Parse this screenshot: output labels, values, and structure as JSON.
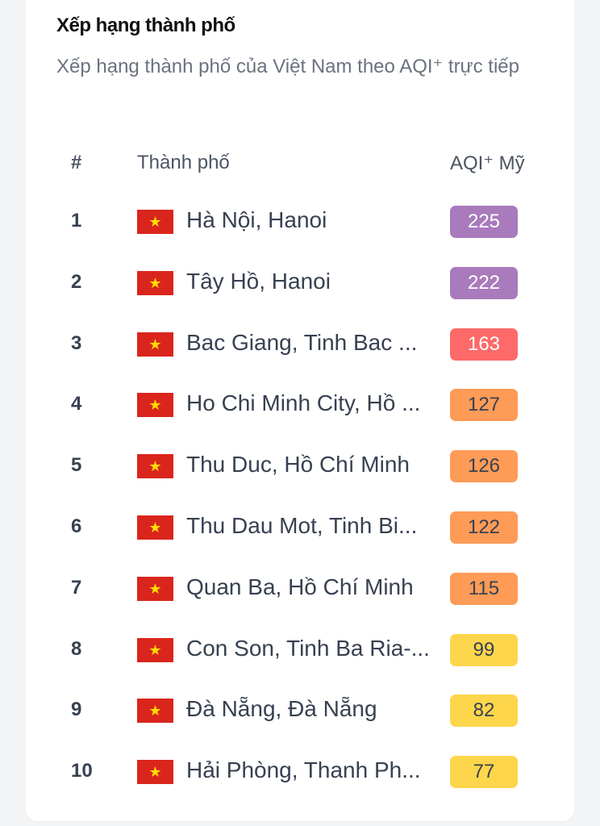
{
  "title": "Xếp hạng thành phố",
  "subtitle": "Xếp hạng thành phố của Việt Nam theo AQI⁺ trực tiếp",
  "table": {
    "headers": {
      "rank": "#",
      "city": "Thành phố",
      "aqi": "AQI⁺ Mỹ"
    },
    "rows": [
      {
        "rank": "1",
        "city": "Hà Nội, Hanoi",
        "aqi": "225",
        "bg": "#a97abc",
        "fg": "#ffffff"
      },
      {
        "rank": "2",
        "city": "Tây Hồ, Hanoi",
        "aqi": "222",
        "bg": "#a97abc",
        "fg": "#ffffff"
      },
      {
        "rank": "3",
        "city": "Bac Giang, Tinh Bac ...",
        "aqi": "163",
        "bg": "#fe6a69",
        "fg": "#ffffff"
      },
      {
        "rank": "4",
        "city": "Ho Chi Minh City, Hồ ...",
        "aqi": "127",
        "bg": "#fe9b57",
        "fg": "#374151"
      },
      {
        "rank": "5",
        "city": "Thu Duc, Hồ Chí Minh",
        "aqi": "126",
        "bg": "#fe9b57",
        "fg": "#374151"
      },
      {
        "rank": "6",
        "city": "Thu Dau Mot, Tinh Bi...",
        "aqi": "122",
        "bg": "#fe9b57",
        "fg": "#374151"
      },
      {
        "rank": "7",
        "city": "Quan Ba, Hồ Chí Minh",
        "aqi": "115",
        "bg": "#fe9b57",
        "fg": "#374151"
      },
      {
        "rank": "8",
        "city": "Con Son, Tinh Ba Ria-...",
        "aqi": "99",
        "bg": "#fdd64b",
        "fg": "#374151"
      },
      {
        "rank": "9",
        "city": "Đà Nẵng, Đà Nẵng",
        "aqi": "82",
        "bg": "#fdd64b",
        "fg": "#374151"
      },
      {
        "rank": "10",
        "city": "Hải Phòng, Thanh Ph...",
        "aqi": "77",
        "bg": "#fdd64b",
        "fg": "#374151"
      }
    ]
  },
  "flag_icon": "vietnam-flag-icon"
}
